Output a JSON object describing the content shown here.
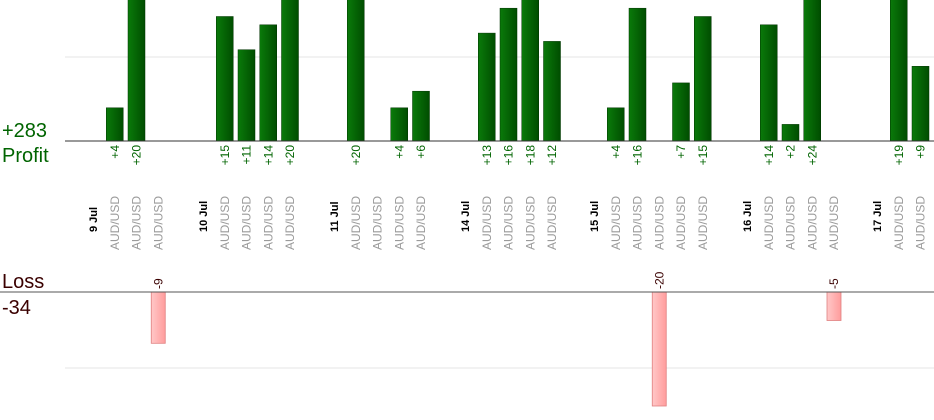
{
  "profit_total": "+283",
  "profit_label": "Profit",
  "loss_label": "Loss",
  "loss_total": "-34",
  "colors": {
    "profit_bar": "#006400",
    "loss_bar": "#ffb3b3",
    "profit_text": "#006400",
    "loss_text": "#3a0000",
    "date_text": "#000000",
    "pair_text": "#9a9a9a"
  },
  "chart_data": {
    "type": "bar",
    "series": [
      {
        "name": "Profit"
      },
      {
        "name": "Loss"
      }
    ],
    "days": [
      {
        "date": "9 Jul",
        "trades": [
          {
            "pair": "AUD/USD",
            "value": 4,
            "label": "+4"
          },
          {
            "pair": "AUD/USD",
            "value": 20,
            "label": "+20"
          },
          {
            "pair": "AUD/USD",
            "value": -9,
            "label": "-9"
          }
        ]
      },
      {
        "date": "10 Jul",
        "trades": [
          {
            "pair": "AUD/USD",
            "value": 15,
            "label": "+15"
          },
          {
            "pair": "AUD/USD",
            "value": 11,
            "label": "+11"
          },
          {
            "pair": "AUD/USD",
            "value": 14,
            "label": "+14"
          },
          {
            "pair": "AUD/USD",
            "value": 20,
            "label": "+20"
          }
        ]
      },
      {
        "date": "11 Jul",
        "trades": [
          {
            "pair": "AUD/USD",
            "value": 20,
            "label": "+20"
          },
          {
            "pair": "AUD/USD",
            "value": null,
            "label": ""
          },
          {
            "pair": "AUD/USD",
            "value": 4,
            "label": "+4"
          },
          {
            "pair": "AUD/USD",
            "value": 6,
            "label": "+6"
          }
        ]
      },
      {
        "date": "14 Jul",
        "trades": [
          {
            "pair": "AUD/USD",
            "value": 13,
            "label": "+13"
          },
          {
            "pair": "AUD/USD",
            "value": 16,
            "label": "+16"
          },
          {
            "pair": "AUD/USD",
            "value": 18,
            "label": "+18"
          },
          {
            "pair": "AUD/USD",
            "value": 12,
            "label": "+12"
          }
        ]
      },
      {
        "date": "15 Jul",
        "trades": [
          {
            "pair": "AUD/USD",
            "value": 4,
            "label": "+4"
          },
          {
            "pair": "AUD/USD",
            "value": 16,
            "label": "+16"
          },
          {
            "pair": "AUD/USD",
            "value": -20,
            "label": "-20"
          },
          {
            "pair": "AUD/USD",
            "value": 7,
            "label": "+7"
          },
          {
            "pair": "AUD/USD",
            "value": 15,
            "label": "+15"
          }
        ]
      },
      {
        "date": "16 Jul",
        "trades": [
          {
            "pair": "AUD/USD",
            "value": 14,
            "label": "+14"
          },
          {
            "pair": "AUD/USD",
            "value": 2,
            "label": "+2"
          },
          {
            "pair": "AUD/USD",
            "value": 24,
            "label": "+24"
          },
          {
            "pair": "AUD/USD",
            "value": -5,
            "label": "-5"
          }
        ]
      },
      {
        "date": "17 Jul",
        "trades": [
          {
            "pair": "AUD/USD",
            "value": 19,
            "label": "+19"
          },
          {
            "pair": "AUD/USD",
            "value": 9,
            "label": "+9"
          }
        ]
      }
    ]
  }
}
